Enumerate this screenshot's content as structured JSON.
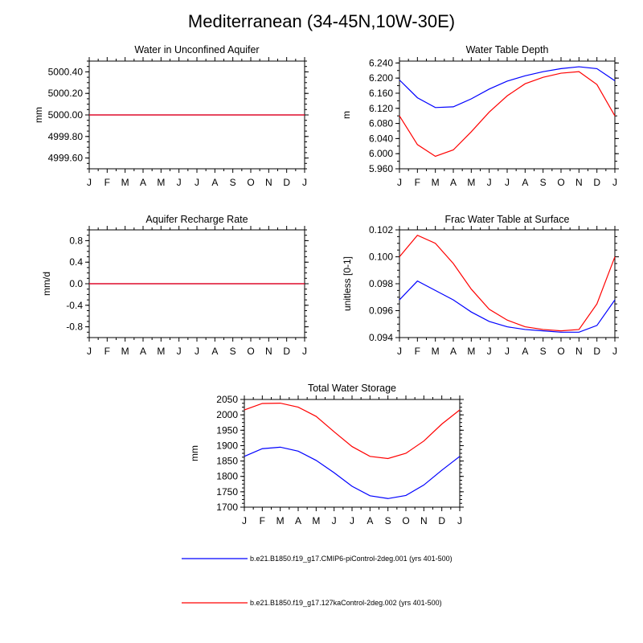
{
  "figure_title": "Mediterranean (34-45N,10W-30E)",
  "legend": [
    {
      "label": "b.e21.B1850.f19_g17.CMIP6-piControl-2deg.001 (yrs 401-500)",
      "color": "#0000ff"
    },
    {
      "label": "b.e21.B1850.f19_g17.127kaControl-2deg.002 (yrs 401-500)",
      "color": "#ff0000"
    }
  ],
  "chart_data": [
    {
      "type": "line",
      "title": "Water in Unconfined Aquifer",
      "ylabel": "mm",
      "x": [
        "J",
        "F",
        "M",
        "A",
        "M",
        "J",
        "J",
        "A",
        "S",
        "O",
        "N",
        "D",
        "J"
      ],
      "ylim": [
        4999.5,
        5000.5
      ],
      "yticks": [
        "5000.40",
        "5000.20",
        "5000.00",
        "4999.80",
        "4999.60"
      ],
      "series": [
        {
          "color": "#0000ff",
          "values": [
            5000,
            5000,
            5000,
            5000,
            5000,
            5000,
            5000,
            5000,
            5000,
            5000,
            5000,
            5000,
            5000
          ]
        },
        {
          "color": "#ff0000",
          "values": [
            5000,
            5000,
            5000,
            5000,
            5000,
            5000,
            5000,
            5000,
            5000,
            5000,
            5000,
            5000,
            5000
          ]
        }
      ]
    },
    {
      "type": "line",
      "title": "Water Table Depth",
      "ylabel": "m",
      "x": [
        "J",
        "F",
        "M",
        "A",
        "M",
        "J",
        "J",
        "A",
        "S",
        "O",
        "N",
        "D",
        "J"
      ],
      "ylim": [
        5.96,
        6.245
      ],
      "yticks": [
        "6.240",
        "6.200",
        "6.160",
        "6.120",
        "6.080",
        "6.040",
        "6.000",
        "5.960"
      ],
      "series": [
        {
          "color": "#0000ff",
          "values": [
            6.195,
            6.148,
            6.122,
            6.124,
            6.145,
            6.171,
            6.192,
            6.206,
            6.217,
            6.225,
            6.23,
            6.225,
            6.193
          ]
        },
        {
          "color": "#ff0000",
          "values": [
            6.1,
            6.024,
            5.993,
            6.01,
            6.058,
            6.11,
            6.153,
            6.185,
            6.202,
            6.213,
            6.217,
            6.183,
            6.1
          ]
        }
      ]
    },
    {
      "type": "line",
      "title": "Aquifer Recharge Rate",
      "ylabel": "mm/d",
      "x": [
        "J",
        "F",
        "M",
        "A",
        "M",
        "J",
        "J",
        "A",
        "S",
        "O",
        "N",
        "D",
        "J"
      ],
      "ylim": [
        -1.0,
        1.0
      ],
      "yticks": [
        "0.8",
        "0.4",
        "0.0",
        "-0.4",
        "-0.8"
      ],
      "series": [
        {
          "color": "#0000ff",
          "values": [
            0,
            0,
            0,
            0,
            0,
            0,
            0,
            0,
            0,
            0,
            0,
            0,
            0
          ]
        },
        {
          "color": "#ff0000",
          "values": [
            0,
            0,
            0,
            0,
            0,
            0,
            0,
            0,
            0,
            0,
            0,
            0,
            0
          ]
        }
      ]
    },
    {
      "type": "line",
      "title": "Frac Water Table at Surface",
      "ylabel": "unitless [0-1]",
      "x": [
        "J",
        "F",
        "M",
        "A",
        "M",
        "J",
        "J",
        "A",
        "S",
        "O",
        "N",
        "D",
        "J"
      ],
      "ylim": [
        0.094,
        0.102
      ],
      "yticks": [
        "0.102",
        "0.100",
        "0.098",
        "0.096",
        "0.094"
      ],
      "series": [
        {
          "color": "#0000ff",
          "values": [
            0.0968,
            0.0982,
            0.0975,
            0.0968,
            0.0959,
            0.0952,
            0.0948,
            0.0946,
            0.0945,
            0.0944,
            0.0944,
            0.0949,
            0.0968
          ]
        },
        {
          "color": "#ff0000",
          "values": [
            0.1,
            0.1016,
            0.101,
            0.0995,
            0.0976,
            0.0961,
            0.0953,
            0.0948,
            0.0946,
            0.0945,
            0.0946,
            0.0965,
            0.1
          ]
        }
      ]
    },
    {
      "type": "line",
      "title": "Total Water Storage",
      "ylabel": "mm",
      "x": [
        "J",
        "F",
        "M",
        "A",
        "M",
        "J",
        "J",
        "A",
        "S",
        "O",
        "N",
        "D",
        "J"
      ],
      "ylim": [
        1700,
        2050
      ],
      "yticks": [
        "2050",
        "2000",
        "1950",
        "1900",
        "1850",
        "1800",
        "1750",
        "1700"
      ],
      "series": [
        {
          "color": "#0000ff",
          "values": [
            1865,
            1890,
            1895,
            1882,
            1852,
            1812,
            1768,
            1737,
            1728,
            1738,
            1772,
            1820,
            1865
          ]
        },
        {
          "color": "#ff0000",
          "values": [
            2016,
            2037,
            2038,
            2025,
            1995,
            1945,
            1897,
            1865,
            1858,
            1875,
            1915,
            1970,
            2016
          ]
        }
      ]
    }
  ]
}
